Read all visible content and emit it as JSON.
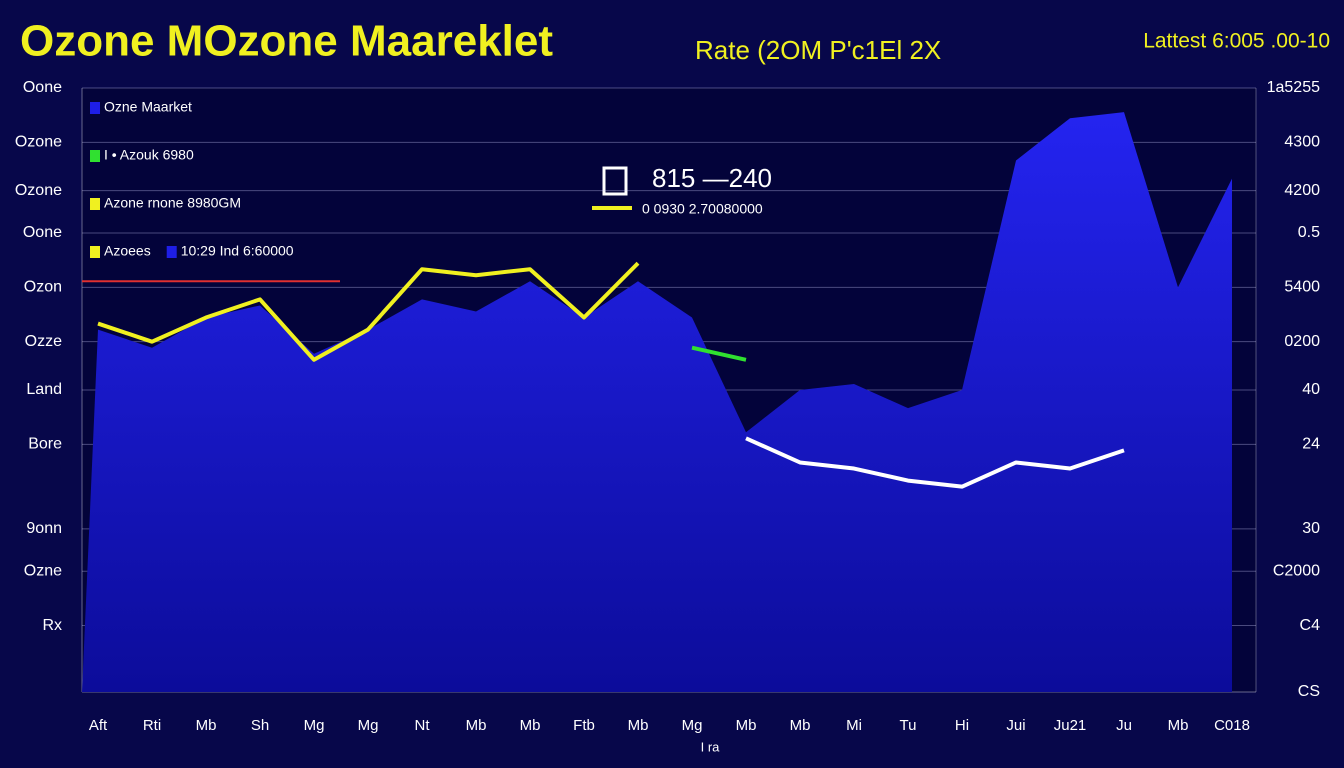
{
  "chart_data": {
    "type": "area",
    "title": "Ozone MOzone Maareklet",
    "subtitle": "Rate (2OM P'c1El 2X",
    "badge": "Lattest 6:005 .00-10",
    "annotation": "815 —240",
    "annotation_sub": "0 0930 2.70080000",
    "xlabel": "I ra",
    "categories": [
      "Aft",
      "Rti",
      "Mb",
      "Sh",
      "Mg",
      "Mg",
      "Nt",
      "Mb",
      "Mb",
      "Ftb",
      "Mb",
      "Mg",
      "Mb",
      "Mb",
      "Mi",
      "Tu",
      "Hi",
      "Jui",
      "Ju21",
      "Ju",
      "Mb",
      "C018"
    ],
    "series": [
      {
        "name": "Ozne Maarket",
        "color": "#1e1ee6",
        "fill": true,
        "values": [
          60,
          57,
          62,
          64,
          56,
          60,
          65,
          63,
          68,
          62,
          68,
          62,
          43,
          50,
          51,
          47,
          50,
          88,
          95,
          96,
          67,
          85
        ]
      },
      {
        "name": "I • Azouk 6980",
        "color": "#30e030",
        "values": [
          null,
          null,
          null,
          null,
          null,
          null,
          null,
          null,
          null,
          null,
          null,
          57,
          55,
          null,
          null,
          null,
          null,
          null,
          null,
          null,
          null,
          null
        ]
      },
      {
        "name": "Azone rnone 8980GM",
        "color": "#f0f020",
        "values": [
          61,
          58,
          62,
          65,
          55,
          60,
          70,
          69,
          70,
          62,
          71,
          null,
          null,
          null,
          null,
          null,
          null,
          null,
          null,
          null,
          null,
          null
        ]
      },
      {
        "color": "#ffffff",
        "values": [
          null,
          null,
          null,
          null,
          null,
          null,
          null,
          null,
          null,
          null,
          null,
          null,
          42,
          38,
          37,
          35,
          34,
          38,
          37,
          40,
          null,
          null
        ]
      }
    ],
    "legend_extra": [
      {
        "label": "Azoees",
        "color": "#f0f020"
      },
      {
        "label": "10:29 Ind 6:60000",
        "color": "#1e1ee6"
      }
    ],
    "reference_line": {
      "value": 68,
      "color": "#e03030"
    },
    "ylim": [
      0,
      100
    ],
    "yticks": [
      {
        "value": 100,
        "label": "Oone"
      },
      {
        "value": 91,
        "label": "Ozone"
      },
      {
        "value": 83,
        "label": "Ozone"
      },
      {
        "value": 76,
        "label": "Oone"
      },
      {
        "value": 67,
        "label": "Ozon"
      },
      {
        "value": 58,
        "label": "Ozze"
      },
      {
        "value": 50,
        "label": "Land"
      },
      {
        "value": 41,
        "label": "Bore"
      },
      {
        "value": 27,
        "label": "9onn"
      },
      {
        "value": 20,
        "label": "Ozne"
      },
      {
        "value": 11,
        "label": "Rx"
      }
    ],
    "right_labels": [
      "1a5255",
      "4300",
      "4200",
      "0.5",
      "5400",
      "0200",
      "40",
      "24",
      "30",
      "C2000",
      "C4",
      "CS"
    ],
    "grid": true
  }
}
